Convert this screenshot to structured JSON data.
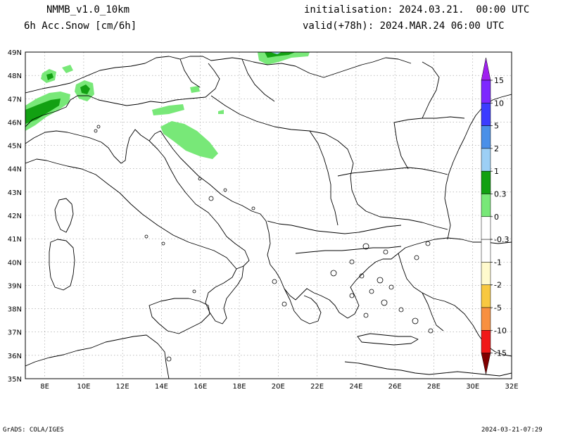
{
  "header": {
    "model": "NMMB_v1.0_10km",
    "field": "6h Acc.Snow [cm/6h]",
    "init": "initialisation: 2024.03.21.  00:00 UTC",
    "valid": "valid(+78h): 2024.MAR.24 06:00 UTC"
  },
  "footer": {
    "left": "GrADS: COLA/IGES",
    "right": "2024-03-21-07:29"
  },
  "map": {
    "lon_range": [
      7,
      32
    ],
    "lat_range": [
      35,
      49
    ],
    "lon_labels": [
      "8E",
      "10E",
      "12E",
      "14E",
      "16E",
      "18E",
      "20E",
      "22E",
      "24E",
      "26E",
      "28E",
      "30E",
      "32E"
    ],
    "lat_labels": [
      "35N",
      "36N",
      "37N",
      "38N",
      "39N",
      "40N",
      "41N",
      "42N",
      "43N",
      "44N",
      "45N",
      "46N",
      "47N",
      "48N",
      "49N"
    ],
    "gridlines": true
  },
  "colorbar": {
    "levels": [
      {
        "label": "15",
        "color": "#7d28ff"
      },
      {
        "label": "10",
        "color": "#3c3cff"
      },
      {
        "label": "5",
        "color": "#4a90e8"
      },
      {
        "label": "2",
        "color": "#9ccff5"
      },
      {
        "label": "1",
        "color": "#12a012"
      },
      {
        "label": "0.3",
        "color": "#78e878"
      },
      {
        "label": "0",
        "color": "#ffffff"
      },
      {
        "label": "-0.3",
        "color": "#ffffff"
      },
      {
        "label": "-1",
        "color": "#fffacd"
      },
      {
        "label": "-2",
        "color": "#f8c840"
      },
      {
        "label": "-5",
        "color": "#f89040"
      },
      {
        "label": "-10",
        "color": "#f01818"
      },
      {
        "label": "-15",
        "color": "#c00000"
      }
    ],
    "top_color": "#a020f0",
    "bottom_color": "#800000"
  }
}
